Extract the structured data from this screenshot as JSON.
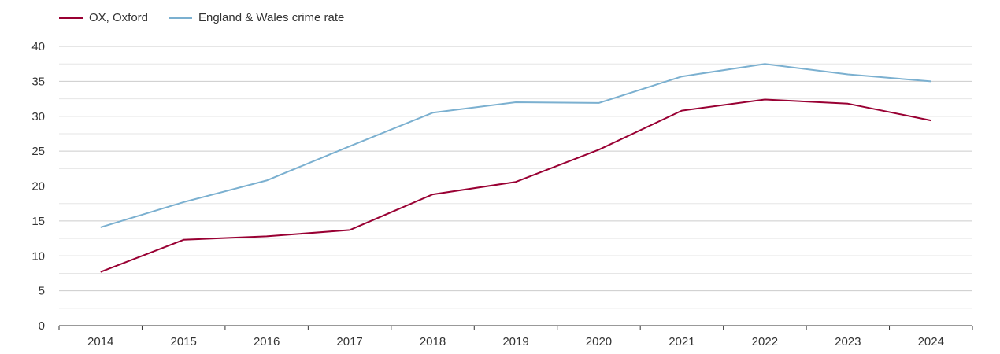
{
  "chart_data": {
    "type": "line",
    "title": "",
    "xlabel": "",
    "ylabel": "",
    "categories": [
      "2014",
      "2015",
      "2016",
      "2017",
      "2018",
      "2019",
      "2020",
      "2021",
      "2022",
      "2023",
      "2024"
    ],
    "ylim": [
      0,
      40
    ],
    "yticks": [
      "0",
      "5",
      "10",
      "15",
      "20",
      "25",
      "30",
      "35",
      "40"
    ],
    "grid": true,
    "legend_position": "top-left",
    "series": [
      {
        "name": "OX, Oxford",
        "color": "#990033",
        "values": [
          7.7,
          12.3,
          12.8,
          13.7,
          18.8,
          20.6,
          25.2,
          30.8,
          32.4,
          31.8,
          29.4
        ]
      },
      {
        "name": "England & Wales crime rate",
        "color": "#7bb0d0",
        "values": [
          14.1,
          17.7,
          20.8,
          25.7,
          30.5,
          32.0,
          31.9,
          35.7,
          37.5,
          36.0,
          35.0
        ]
      }
    ]
  }
}
